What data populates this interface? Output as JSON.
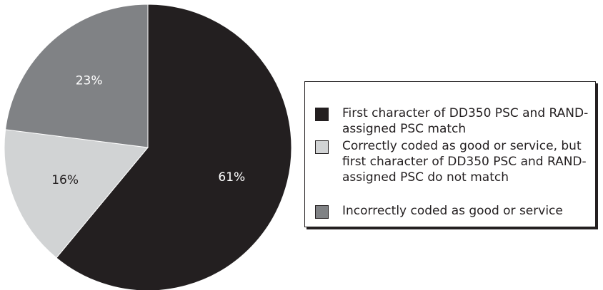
{
  "chart_data": {
    "type": "pie",
    "title": "",
    "start": "12 o'clock, clockwise",
    "slices": [
      {
        "label": "First character of DD350 PSC and RAND-assigned PSC match",
        "value": 61,
        "value_label": "61%",
        "color": "#231f20",
        "label_color": "#ffffff"
      },
      {
        "label": "Correctly coded as good or service, but first character of DD350 PSC and RAND-assigned PSC do not match",
        "value": 16,
        "value_label": "16%",
        "color": "#d1d3d4",
        "label_color": "#231f20"
      },
      {
        "label": "Incorrectly coded as good or service",
        "value": 23,
        "value_label": "23%",
        "color": "#808285",
        "label_color": "#ffffff"
      }
    ],
    "legend": {
      "position": "right"
    },
    "slice_border_color": "#ffffff"
  }
}
